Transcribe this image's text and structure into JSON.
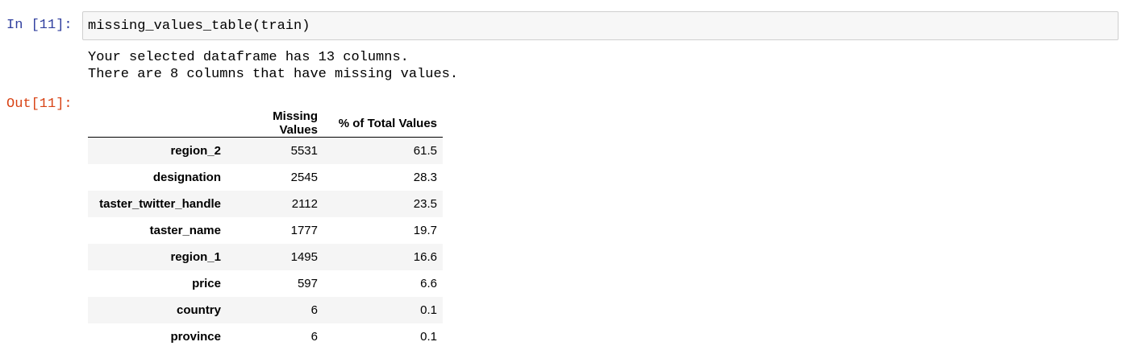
{
  "input_cell": {
    "prompt": "In [11]:",
    "code": "missing_values_table(train)"
  },
  "stdout": {
    "lines": [
      "Your selected dataframe has 13 columns.",
      "There are 8 columns that have missing values."
    ]
  },
  "output_cell": {
    "prompt": "Out[11]:",
    "table": {
      "columns": [
        "",
        "Missing Values",
        "% of Total Values"
      ],
      "rows": [
        {
          "index": "region_2",
          "missing": "5531",
          "percent": "61.5"
        },
        {
          "index": "designation",
          "missing": "2545",
          "percent": "28.3"
        },
        {
          "index": "taster_twitter_handle",
          "missing": "2112",
          "percent": "23.5"
        },
        {
          "index": "taster_name",
          "missing": "1777",
          "percent": "19.7"
        },
        {
          "index": "region_1",
          "missing": "1495",
          "percent": "16.6"
        },
        {
          "index": "price",
          "missing": "597",
          "percent": "6.6"
        },
        {
          "index": "country",
          "missing": "6",
          "percent": "0.1"
        },
        {
          "index": "province",
          "missing": "6",
          "percent": "0.1"
        }
      ]
    }
  },
  "colors": {
    "in_prompt": "#303f9f",
    "out_prompt": "#d84315",
    "code_bg": "#f7f7f7",
    "row_stripe": "#f5f5f5"
  }
}
